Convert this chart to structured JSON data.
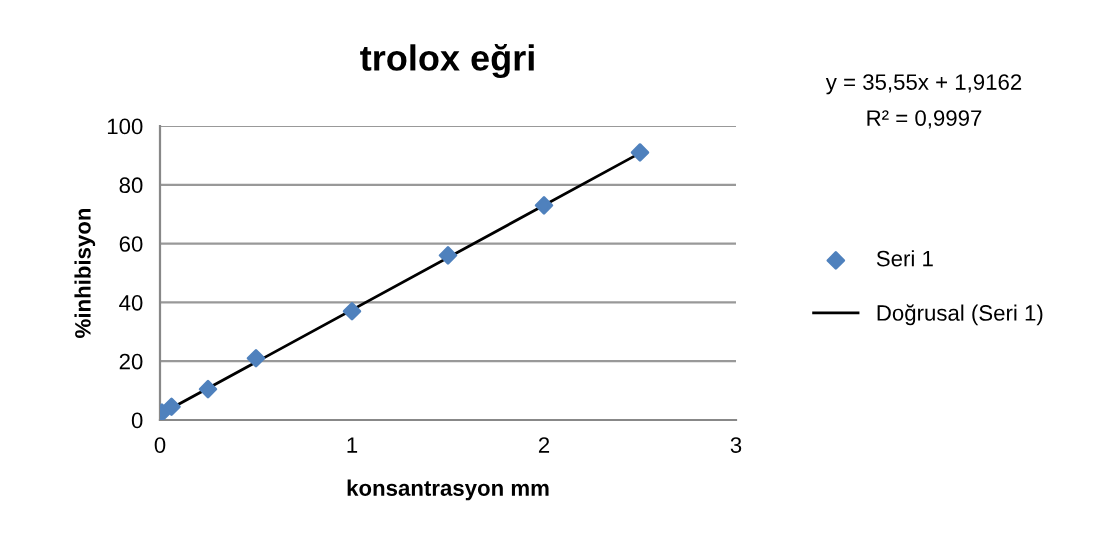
{
  "chart_data": {
    "type": "scatter",
    "title": "trolox eğri",
    "xlabel": "konsantrasyon mm",
    "ylabel": "%inhibisyon",
    "annotations": [
      "y = 35,55x + 1,9162",
      "R² = 0,9997"
    ],
    "series": [
      {
        "name": "Seri 1",
        "color": "#4f81bd",
        "marker": "diamond",
        "x": [
          0.01,
          0.06,
          0.25,
          0.5,
          1,
          1.5,
          2,
          2.5
        ],
        "values": [
          2.5,
          4.5,
          10.5,
          21,
          37,
          56,
          73,
          91
        ]
      },
      {
        "name": "Doğrusal (Seri 1)",
        "type": "line",
        "color": "#000000",
        "marker": "none",
        "line_style": "solid",
        "x": [
          0,
          2.5
        ],
        "values": [
          1.9,
          90.8
        ]
      }
    ],
    "xlim": [
      0,
      3
    ],
    "xticks": [
      0,
      1,
      2,
      3
    ],
    "ylim": [
      0,
      100
    ],
    "yticks": [
      0,
      20,
      40,
      60,
      80,
      100
    ],
    "grid": "y",
    "legend": "right"
  }
}
